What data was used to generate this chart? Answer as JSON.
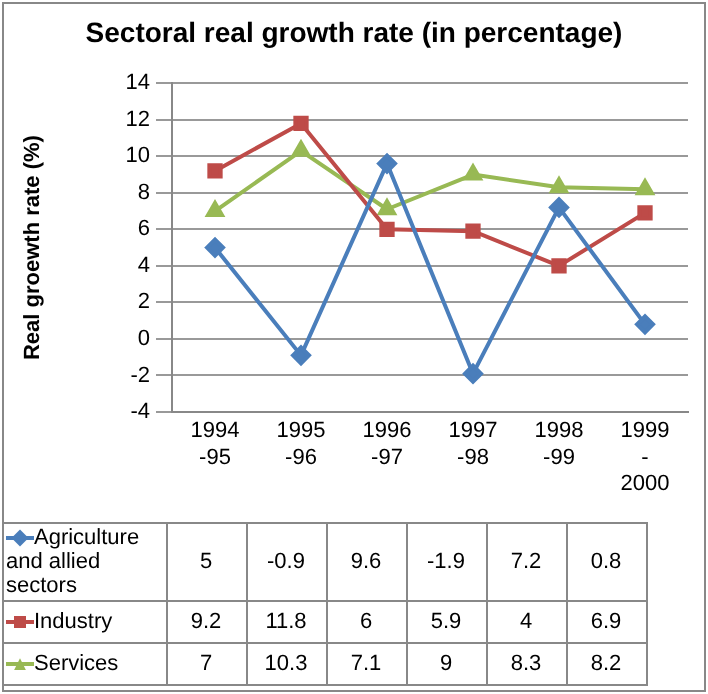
{
  "chart_data": {
    "type": "line",
    "title": "Sectoral real growth rate (in percentage)",
    "ylabel": "Real groewth rate (%)",
    "categories": [
      "1994 -95",
      "1995 -96",
      "1996 -97",
      "1997 -98",
      "1998 -99",
      "1999 - 2000"
    ],
    "series": [
      {
        "name": "Agriculture and allied sectors",
        "color": "#4a7ebb",
        "marker": "diamond",
        "values": [
          5,
          -0.9,
          9.6,
          -1.9,
          7.2,
          0.8
        ]
      },
      {
        "name": "Industry",
        "color": "#be4b48",
        "marker": "square",
        "values": [
          9.2,
          11.8,
          6,
          5.9,
          4,
          6.9
        ]
      },
      {
        "name": "Services",
        "color": "#98b954",
        "marker": "triangle",
        "values": [
          7,
          10.3,
          7.1,
          9,
          8.3,
          8.2
        ]
      }
    ],
    "ylim": [
      -4,
      14
    ],
    "yticks": [
      -4,
      -2,
      0,
      2,
      4,
      6,
      8,
      10,
      12,
      14
    ],
    "grid": "y",
    "data_labels": true,
    "legend": "bottom left"
  }
}
